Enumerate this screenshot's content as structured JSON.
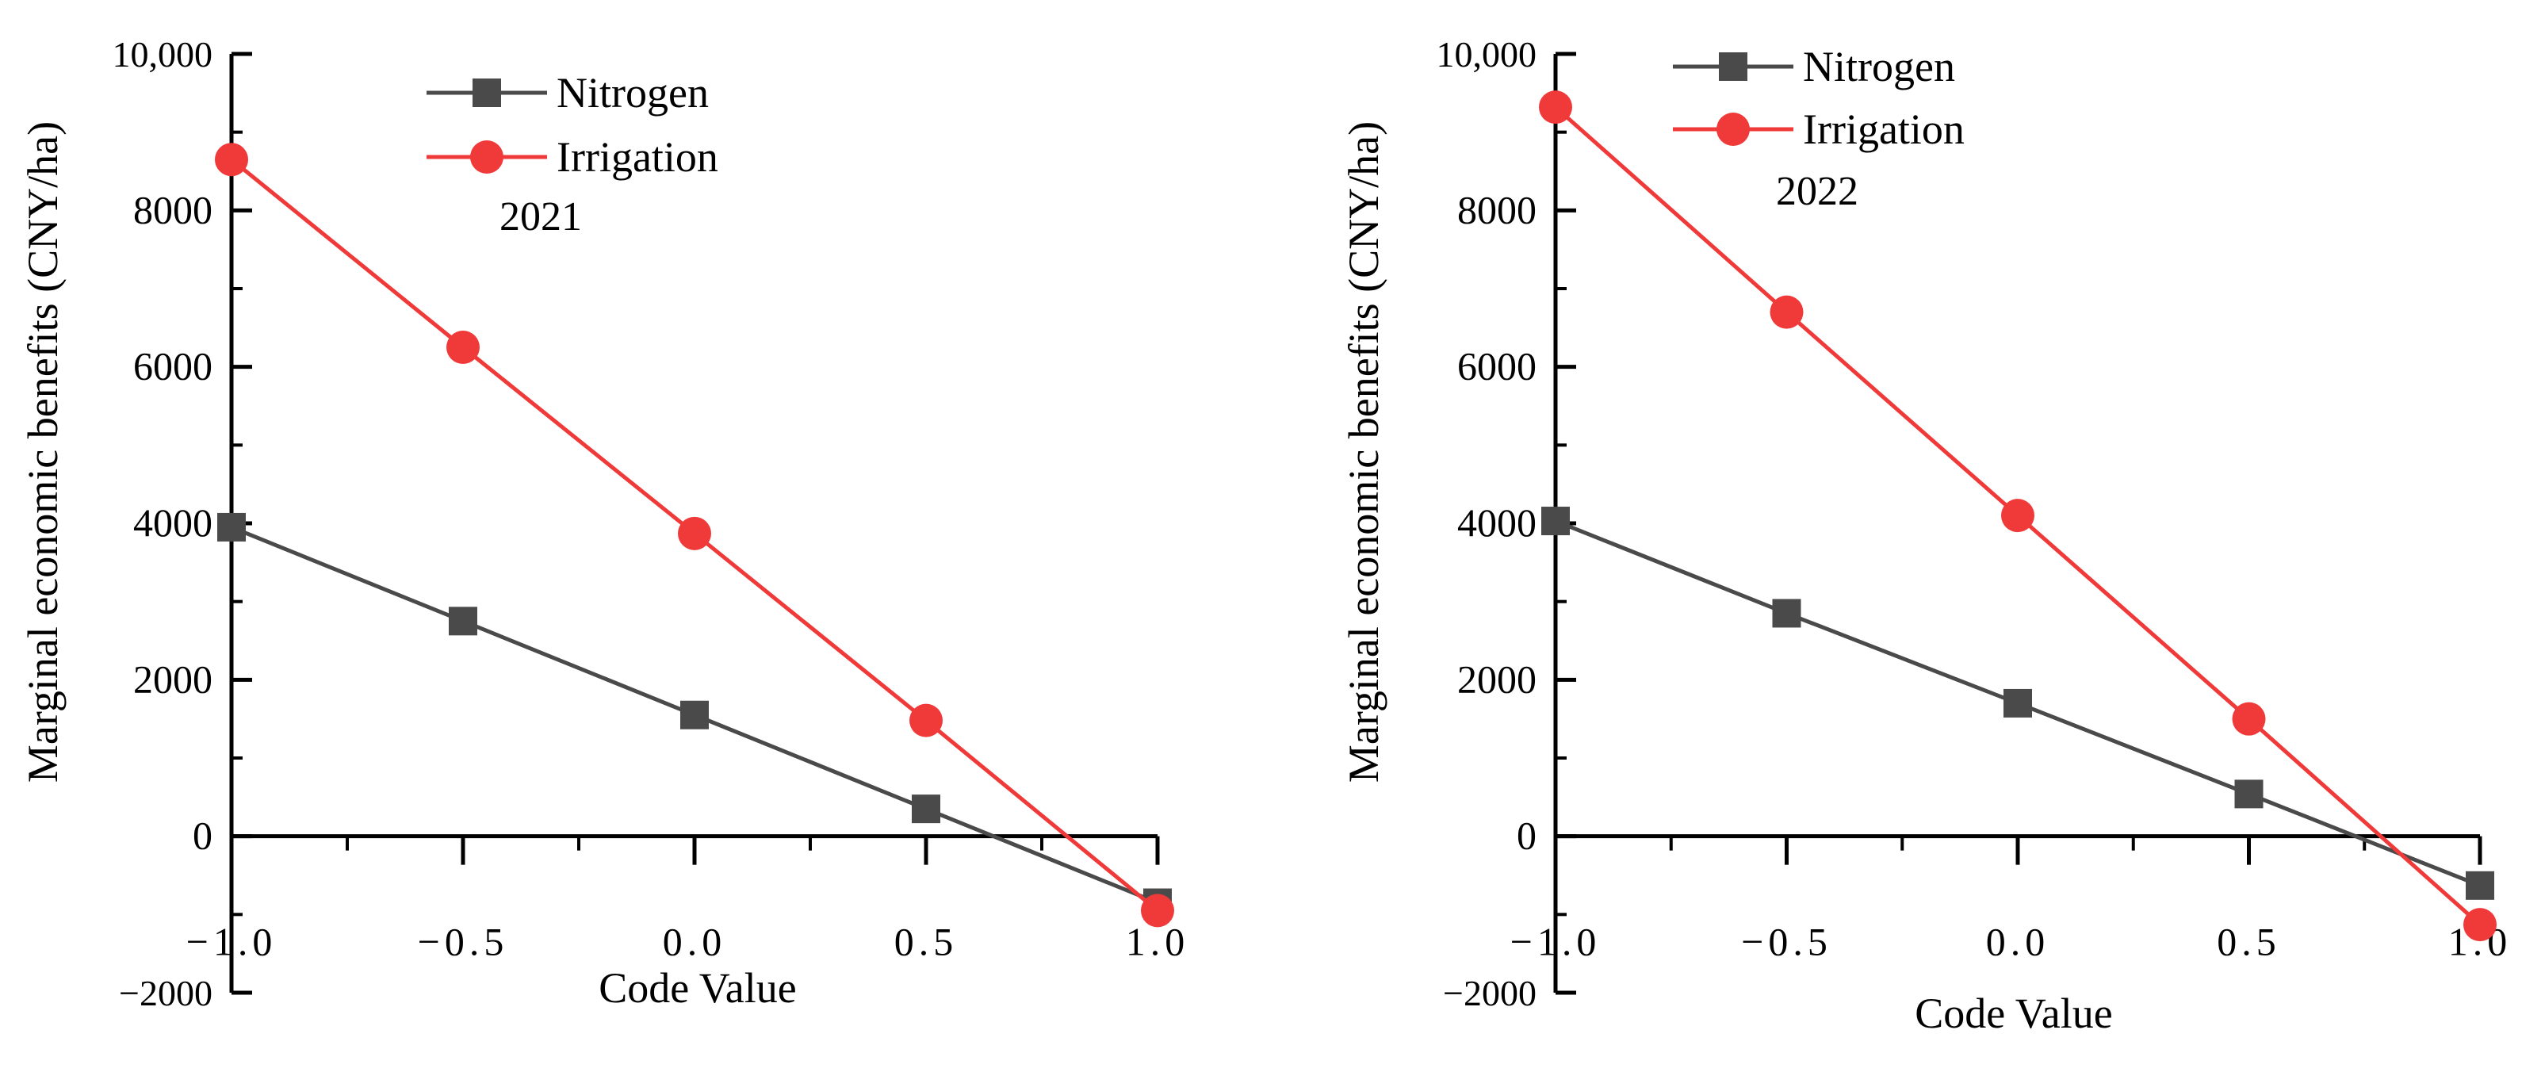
{
  "chart_data": [
    {
      "type": "line",
      "title": "2021",
      "xlabel": "Code Value",
      "ylabel": "Marginal economic benefits (CNY/ha)",
      "x": [
        -1.0,
        -0.5,
        0.0,
        0.5,
        1.0
      ],
      "xlim": [
        -1.0,
        1.0
      ],
      "ylim": [
        -2000,
        10000
      ],
      "x_tick_labels": [
        "−1.0",
        "−0.5",
        "0.0",
        "0.5",
        "1.0"
      ],
      "y_tick_labels": [
        {
          "value": -2000,
          "label": "−2000"
        },
        {
          "value": 0,
          "label": "0"
        },
        {
          "value": 2000,
          "label": "2000"
        },
        {
          "value": 4000,
          "label": "4000"
        },
        {
          "value": 6000,
          "label": "6000"
        },
        {
          "value": 8000,
          "label": "8000"
        },
        {
          "value": 10000,
          "label": "10,000"
        }
      ],
      "legend_position": "top-left",
      "series": [
        {
          "name": "Nitrogen",
          "marker": "square",
          "color": "#4a4a4a",
          "values": [
            3950,
            2750,
            1550,
            350,
            -850
          ]
        },
        {
          "name": "Irrigation",
          "marker": "circle",
          "color": "#f03a3a",
          "values": [
            8650,
            6250,
            3870,
            1480,
            -950
          ]
        }
      ]
    },
    {
      "type": "line",
      "title": "2022",
      "xlabel": "Code Value",
      "ylabel": "Marginal economic benefits (CNY/ha)",
      "x": [
        -1.0,
        -0.5,
        0.0,
        0.5,
        1.0
      ],
      "xlim": [
        -1.0,
        1.0
      ],
      "ylim": [
        -2000,
        10000
      ],
      "x_tick_labels": [
        "−1.0",
        "−0.5",
        "0.0",
        "0.5",
        "1.0"
      ],
      "y_tick_labels": [
        {
          "value": -2000,
          "label": "−2000"
        },
        {
          "value": 0,
          "label": "0"
        },
        {
          "value": 2000,
          "label": "2000"
        },
        {
          "value": 4000,
          "label": "4000"
        },
        {
          "value": 6000,
          "label": "6000"
        },
        {
          "value": 8000,
          "label": "8000"
        },
        {
          "value": 10000,
          "label": "10,000"
        }
      ],
      "legend_position": "top-left",
      "series": [
        {
          "name": "Nitrogen",
          "marker": "square",
          "color": "#4a4a4a",
          "values": [
            4030,
            2850,
            1700,
            540,
            -630
          ]
        },
        {
          "name": "Irrigation",
          "marker": "circle",
          "color": "#f03a3a",
          "values": [
            9320,
            6700,
            4100,
            1500,
            -1130
          ]
        }
      ]
    }
  ]
}
